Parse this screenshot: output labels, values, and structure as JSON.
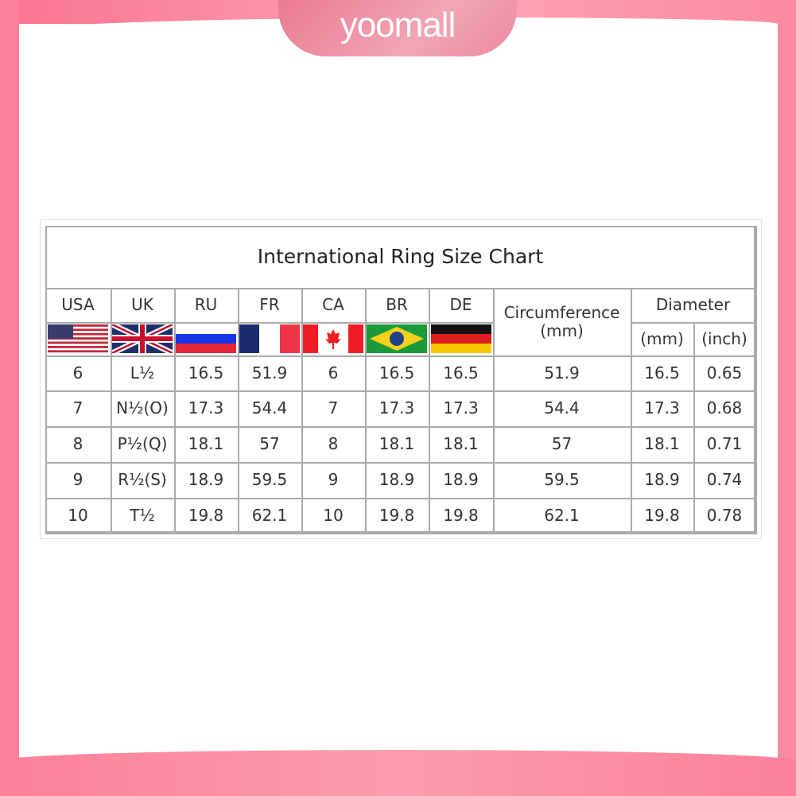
{
  "brand": {
    "logo_text": "yoomall",
    "frame_color": "#fb8098"
  },
  "chart": {
    "title": "International Ring Size Chart",
    "columns": [
      "USA",
      "UK",
      "RU",
      "FR",
      "CA",
      "BR",
      "DE"
    ],
    "flags": [
      "usa-flag",
      "uk-flag",
      "russia-flag",
      "france-flag",
      "canada-flag",
      "brazil-flag",
      "germany-flag"
    ],
    "circumference_header": "Circumference",
    "circumference_unit": "(mm)",
    "diameter_header": "Diameter",
    "diameter_units": [
      "(mm)",
      "(inch)"
    ],
    "rows": [
      [
        "6",
        "L½",
        "16.5",
        "51.9",
        "6",
        "16.5",
        "16.5",
        "51.9",
        "16.5",
        "0.65"
      ],
      [
        "7",
        "N½(O)",
        "17.3",
        "54.4",
        "7",
        "17.3",
        "17.3",
        "54.4",
        "17.3",
        "0.68"
      ],
      [
        "8",
        "P½(Q)",
        "18.1",
        "57",
        "8",
        "18.1",
        "18.1",
        "57",
        "18.1",
        "0.71"
      ],
      [
        "9",
        "R½(S)",
        "18.9",
        "59.5",
        "9",
        "18.9",
        "18.9",
        "59.5",
        "18.9",
        "0.74"
      ],
      [
        "10",
        "T½",
        "19.8",
        "62.1",
        "10",
        "19.8",
        "19.8",
        "62.1",
        "19.8",
        "0.78"
      ]
    ]
  }
}
